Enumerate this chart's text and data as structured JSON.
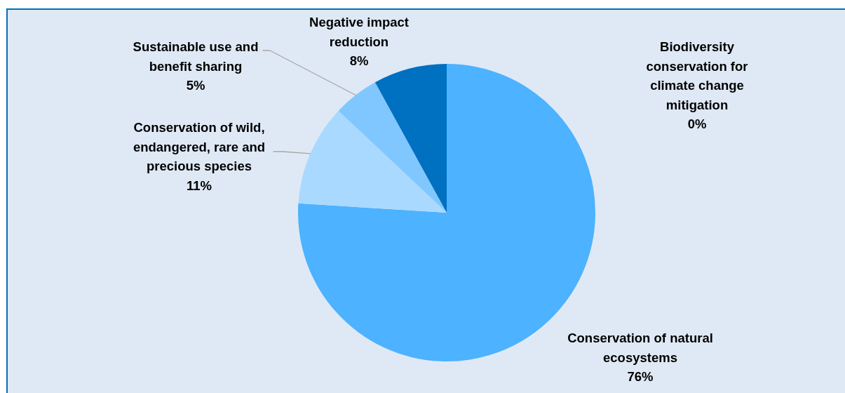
{
  "chart_data": {
    "type": "pie",
    "categories": [
      "Biodiversity conservation for climate change mitigation",
      "Conservation of natural ecosystems",
      "Conservation of wild, endangered, rare and precious species",
      "Sustainable use and benefit sharing",
      "Negative impact reduction"
    ],
    "values": [
      0,
      76,
      11,
      5,
      8
    ],
    "colors": [
      "#9dc3e6",
      "#4db2ff",
      "#aad9ff",
      "#80c7ff",
      "#0070c0"
    ],
    "value_labels": [
      "0%",
      "76%",
      "11%",
      "5%",
      "8%"
    ]
  }
}
